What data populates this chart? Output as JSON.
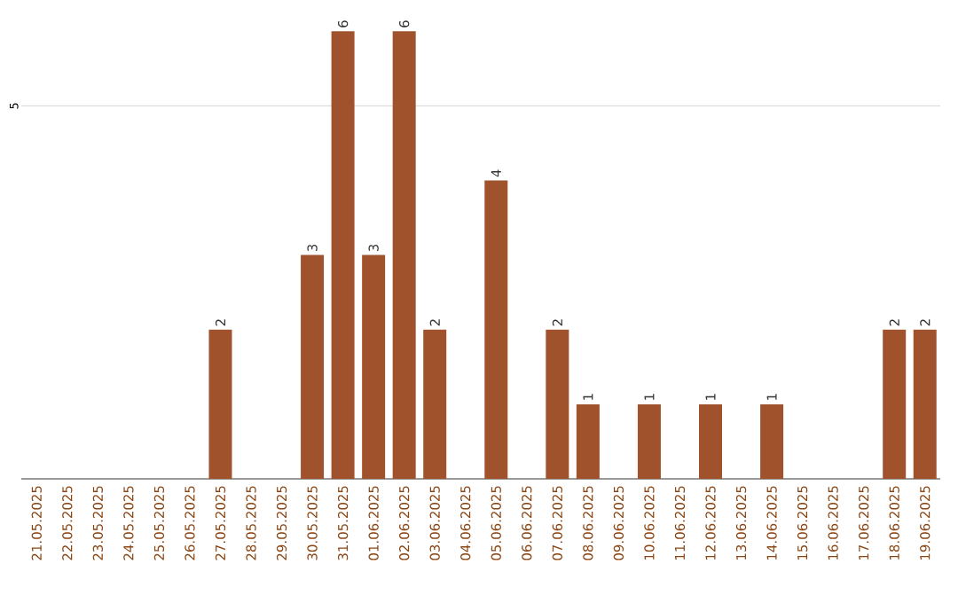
{
  "chart_data": {
    "type": "bar",
    "categories": [
      "21.05.2025",
      "22.05.2025",
      "23.05.2025",
      "24.05.2025",
      "25.05.2025",
      "26.05.2025",
      "27.05.2025",
      "28.05.2025",
      "29.05.2025",
      "30.05.2025",
      "31.05.2025",
      "01.06.2025",
      "02.06.2025",
      "03.06.2025",
      "04.06.2025",
      "05.06.2025",
      "06.06.2025",
      "07.06.2025",
      "08.06.2025",
      "09.06.2025",
      "10.06.2025",
      "11.06.2025",
      "12.06.2025",
      "13.06.2025",
      "14.06.2025",
      "15.06.2025",
      "16.06.2025",
      "17.06.2025",
      "18.06.2025",
      "19.06.2025"
    ],
    "values": [
      0,
      0,
      0,
      0,
      0,
      0,
      2,
      0,
      0,
      3,
      6,
      3,
      6,
      2,
      0,
      4,
      0,
      2,
      1,
      0,
      1,
      0,
      1,
      0,
      1,
      0,
      0,
      0,
      2,
      2
    ],
    "value_labels": [
      null,
      null,
      null,
      null,
      null,
      null,
      "2",
      null,
      null,
      "3",
      "6",
      "3",
      "6",
      "2",
      null,
      "4",
      null,
      "2",
      "1",
      null,
      "1",
      null,
      "1",
      null,
      "1",
      null,
      null,
      null,
      "2",
      "2"
    ],
    "color": "#a0522d",
    "ref_lines": [
      {
        "axis": "y",
        "value": 5,
        "label": "5",
        "color": "#cccccc"
      }
    ]
  }
}
